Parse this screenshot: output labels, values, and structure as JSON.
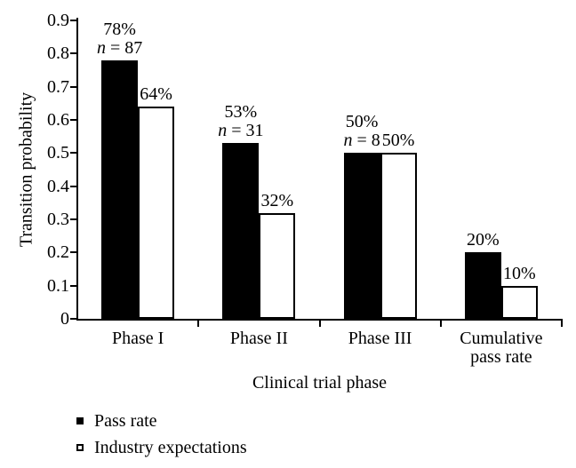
{
  "figure": {
    "background_color": "#ffffff",
    "ink_color": "#000000"
  },
  "chart_data": {
    "type": "bar",
    "title": "",
    "xlabel": "Clinical trial phase",
    "ylabel": "Transition probability",
    "ylim": [
      0,
      0.9
    ],
    "ytick_interval": 0.1,
    "ytick_labels": [
      "0",
      "0.1",
      "0.2",
      "0.3",
      "0.4",
      "0.5",
      "0.6",
      "0.7",
      "0.8",
      "0.9"
    ],
    "grid": false,
    "legend_position": "bottom-left",
    "categories": [
      "Phase I",
      "Phase II",
      "Phase III",
      "Cumulative pass rate"
    ],
    "category_label_lines": [
      [
        "Phase I"
      ],
      [
        "Phase II"
      ],
      [
        "Phase III"
      ],
      [
        "Cumulative",
        "pass rate"
      ]
    ],
    "series": [
      {
        "name": "Pass rate",
        "marker": "filled-square",
        "fill": "#000000",
        "values": [
          0.78,
          0.53,
          0.5,
          0.2
        ],
        "value_labels": [
          "78%",
          "53%",
          "50%",
          "20%"
        ],
        "n_labels": [
          "n = 87",
          "n = 31",
          "n = 8",
          ""
        ]
      },
      {
        "name": "Industry expectations",
        "marker": "open-square",
        "fill": "#ffffff",
        "values": [
          0.64,
          0.32,
          0.5,
          0.1
        ],
        "value_labels": [
          "64%",
          "32%",
          "50%",
          "10%"
        ],
        "n_labels": [
          "",
          "",
          "",
          ""
        ]
      }
    ]
  }
}
